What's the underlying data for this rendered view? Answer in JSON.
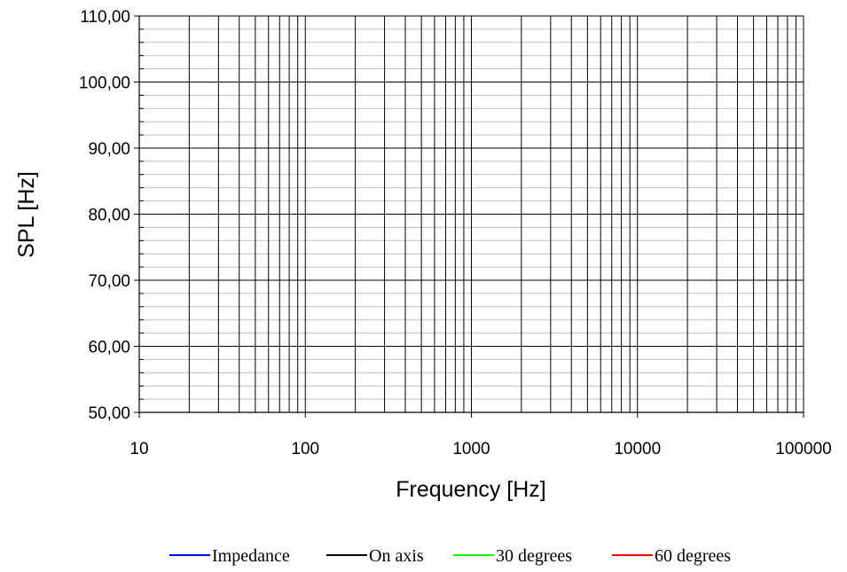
{
  "chart_data": {
    "type": "line",
    "xlabel": "Frequency [Hz]",
    "ylabel": "SPL [Hz]",
    "x_scale": "log",
    "xlim": [
      10,
      100000
    ],
    "ylim": [
      50,
      110
    ],
    "x_ticks": [
      10,
      100,
      1000,
      10000,
      100000
    ],
    "x_tick_labels": [
      "10",
      "100",
      "1000",
      "10000",
      "100000"
    ],
    "y_ticks": [
      50,
      60,
      70,
      80,
      90,
      100,
      110
    ],
    "y_tick_labels": [
      "50,00",
      "60,00",
      "70,00",
      "80,00",
      "90,00",
      "100,00",
      "110,00"
    ],
    "y_minor_step": 2,
    "grid": true,
    "legend_position": "bottom",
    "series": [
      {
        "name": "Impedance",
        "color": "#0000ff",
        "x": [],
        "y": []
      },
      {
        "name": "On axis",
        "color": "#000000",
        "x": [],
        "y": []
      },
      {
        "name": "30 degrees",
        "color": "#00ff00",
        "x": [],
        "y": []
      },
      {
        "name": "60 degrees",
        "color": "#ff0000",
        "x": [],
        "y": []
      }
    ]
  }
}
